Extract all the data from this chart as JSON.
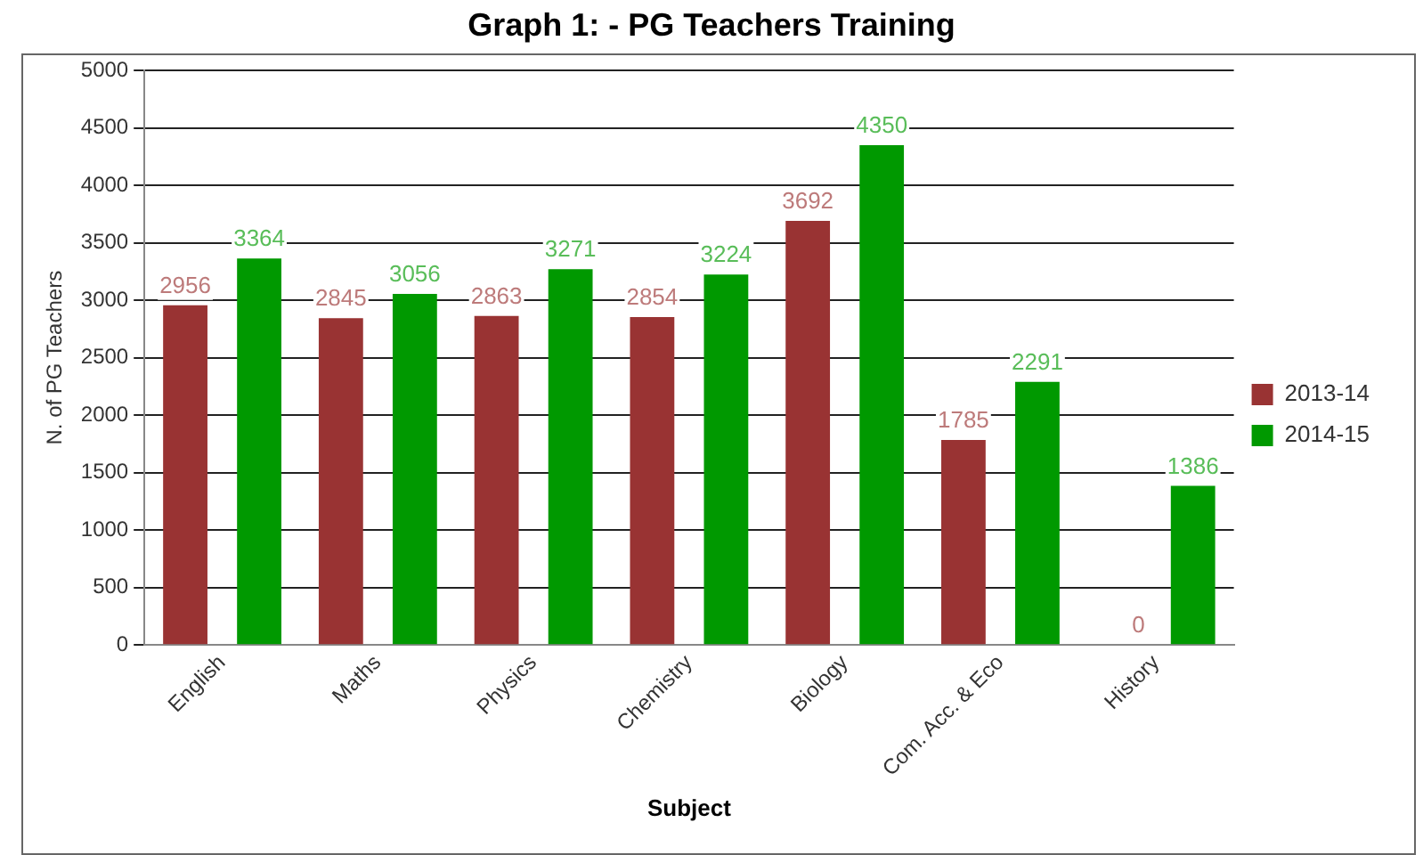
{
  "chart_data": {
    "type": "bar",
    "title": "Graph 1: - PG Teachers Training",
    "xlabel": "Subject",
    "ylabel": "N. of PG Teachers",
    "categories": [
      "English",
      "Maths",
      "Physics",
      "Chemistry",
      "Biology",
      "Com. Acc. & Eco",
      "History"
    ],
    "series": [
      {
        "name": "2013-14",
        "color": "#993333",
        "values": [
          2956,
          2845,
          2863,
          2854,
          3692,
          1785,
          0
        ]
      },
      {
        "name": "2014-15",
        "color": "#009900",
        "values": [
          3364,
          3056,
          3271,
          3224,
          4350,
          2291,
          1386
        ]
      }
    ],
    "ylim": [
      0,
      5000
    ],
    "yticks": [
      0,
      500,
      1000,
      1500,
      2000,
      2500,
      3000,
      3500,
      4000,
      4500,
      5000
    ],
    "grid": "y",
    "legend": "right",
    "data_labels": true
  }
}
